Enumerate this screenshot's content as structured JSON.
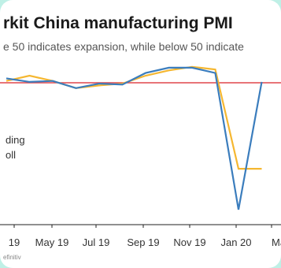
{
  "header": {
    "title": "rkit China manufacturing PMI",
    "subtitle": "e 50 indicates expansion, while below 50 indicate",
    "source": "efinitiv"
  },
  "chart_data": {
    "type": "line",
    "title": "rkit China manufacturing PMI",
    "x_ticks": [
      "19",
      "May 19",
      "Jul 19",
      "Sep 19",
      "Nov 19",
      "Jan 20",
      "Ma"
    ],
    "legend_fragments": [
      "ding",
      "oll"
    ],
    "reference_line": 50,
    "reference_color": "#e0474c",
    "ylim": [
      34,
      54
    ],
    "series": [
      {
        "color": "#f5b731",
        "values": [
          50.2,
          50.8,
          50.2,
          49.4,
          49.7,
          49.9,
          50.8,
          51.4,
          51.8,
          51.5,
          40.3,
          40.3
        ]
      },
      {
        "color": "#3b7dbd",
        "values": [
          50.5,
          50.1,
          50.2,
          49.4,
          49.9,
          49.8,
          51.1,
          51.7,
          51.7,
          51.1,
          35.7,
          50.1
        ]
      }
    ]
  }
}
